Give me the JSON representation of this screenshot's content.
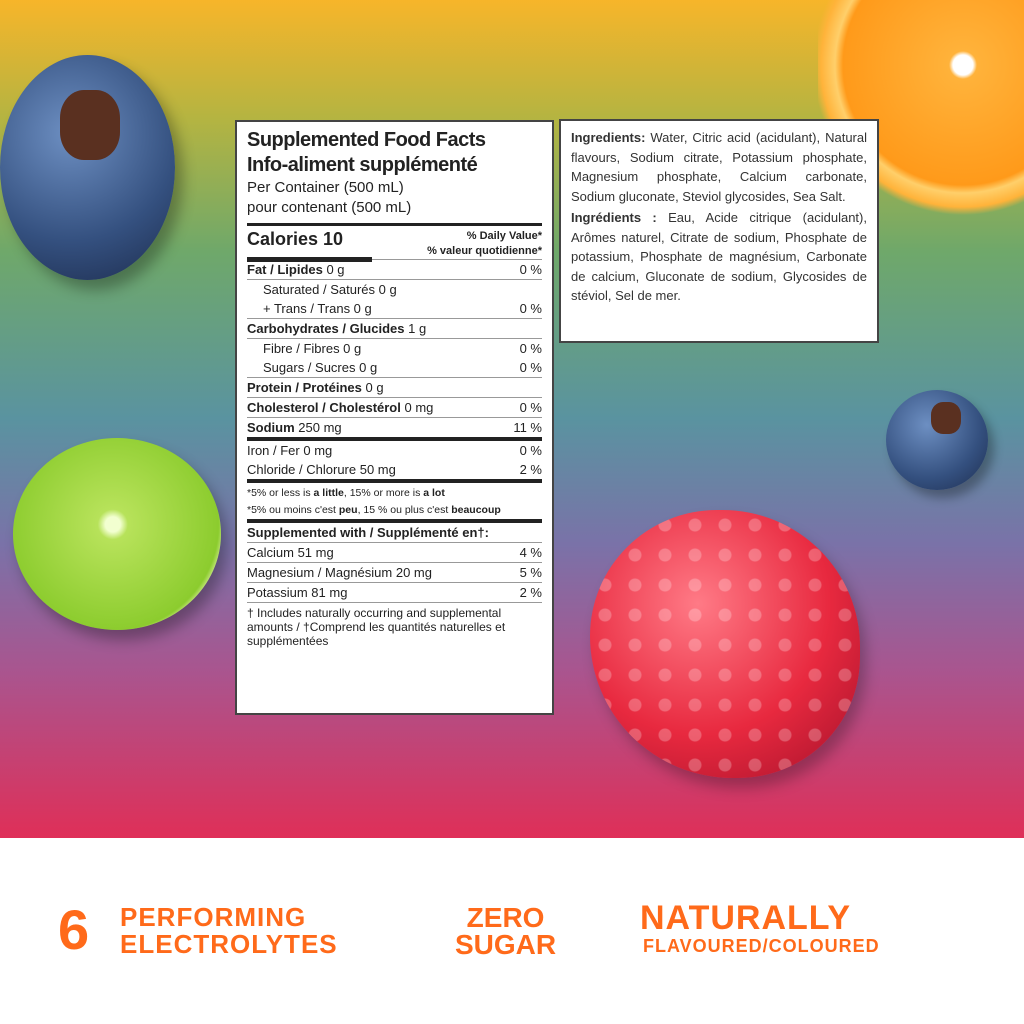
{
  "nutrition": {
    "title_en": "Supplemented Food Facts",
    "title_fr": "Info-aliment supplémenté",
    "per_en": "Per Container (500 mL)",
    "per_fr": "pour contenant (500 mL)",
    "calories": "Calories 10",
    "dv_en": "% Daily Value*",
    "dv_fr": "% valeur quotidienne*",
    "rows": [
      {
        "label": "Fat / Lipides",
        "value": "0 g",
        "dv": "0 %"
      },
      {
        "label": "Saturated / Saturés 0 g",
        "value": "",
        "dv": ""
      },
      {
        "label": "+ Trans / Trans 0 g",
        "value": "",
        "dv": "0 %"
      },
      {
        "label": "Carbohydrates / Glucides",
        "value": "1 g",
        "dv": ""
      },
      {
        "label": "Fibre / Fibres 0 g",
        "value": "",
        "dv": "0 %"
      },
      {
        "label": "Sugars / Sucres 0 g",
        "value": "",
        "dv": "0 %"
      },
      {
        "label": "Protein / Protéines",
        "value": "0 g",
        "dv": ""
      },
      {
        "label": "Cholesterol / Cholestérol",
        "value": "0 mg",
        "dv": "0 %"
      },
      {
        "label": "Sodium",
        "value": "250 mg",
        "dv": "11 %"
      },
      {
        "label": "Iron / Fer 0 mg",
        "value": "",
        "dv": "0 %"
      },
      {
        "label": "Chloride / Chlorure 50 mg",
        "value": "",
        "dv": "2 %"
      }
    ],
    "note_en": [
      "*5% or less is ",
      "a little",
      ", 15% or more is ",
      "a lot"
    ],
    "note_fr": [
      "*5% ou moins c'est ",
      "peu",
      ", 15 % ou plus c'est ",
      "beaucoup"
    ],
    "supp_header": "Supplemented with / Supplémenté en†:",
    "supp": [
      {
        "label": "Calcium 51 mg",
        "dv": "4 %"
      },
      {
        "label": "Magnesium / Magnésium 20 mg",
        "dv": "5 %"
      },
      {
        "label": "Potassium 81 mg",
        "dv": "2 %"
      }
    ],
    "footnote": "† Includes naturally occurring and supplemental amounts / †Comprend les quantités naturelles et supplémentées"
  },
  "ingredients": {
    "en_label": "Ingredients:",
    "en_text": " Water, Citric acid (acidulant), Natural flavours, Sodium citrate, Potassium phosphate, Magnesium phosphate, Calcium carbonate, Sodium gluconate, Steviol glycosides, Sea Salt.",
    "fr_label": "Ingrédients :",
    "fr_text": " Eau, Acide citrique (acidulant), Arômes naturel, Citrate de sodium, Phosphate de potassium, Phosphate de magnésium, Carbonate de calcium, Gluconate de sodium, Glycosides de stéviol, Sel de mer."
  },
  "claims": {
    "number": "6",
    "c1_line1": "PERFORMING",
    "c1_line2": "ELECTROLYTES",
    "c2_line1": "ZERO",
    "c2_line2": "SUGAR",
    "c3_line1": "NATURALLY",
    "c3_line2": "FLAVOURED/COLOURED"
  },
  "colors": {
    "accent": "#ff6a1a",
    "gradient_top": "#f7b52a",
    "gradient_bottom": "#df2f58"
  }
}
